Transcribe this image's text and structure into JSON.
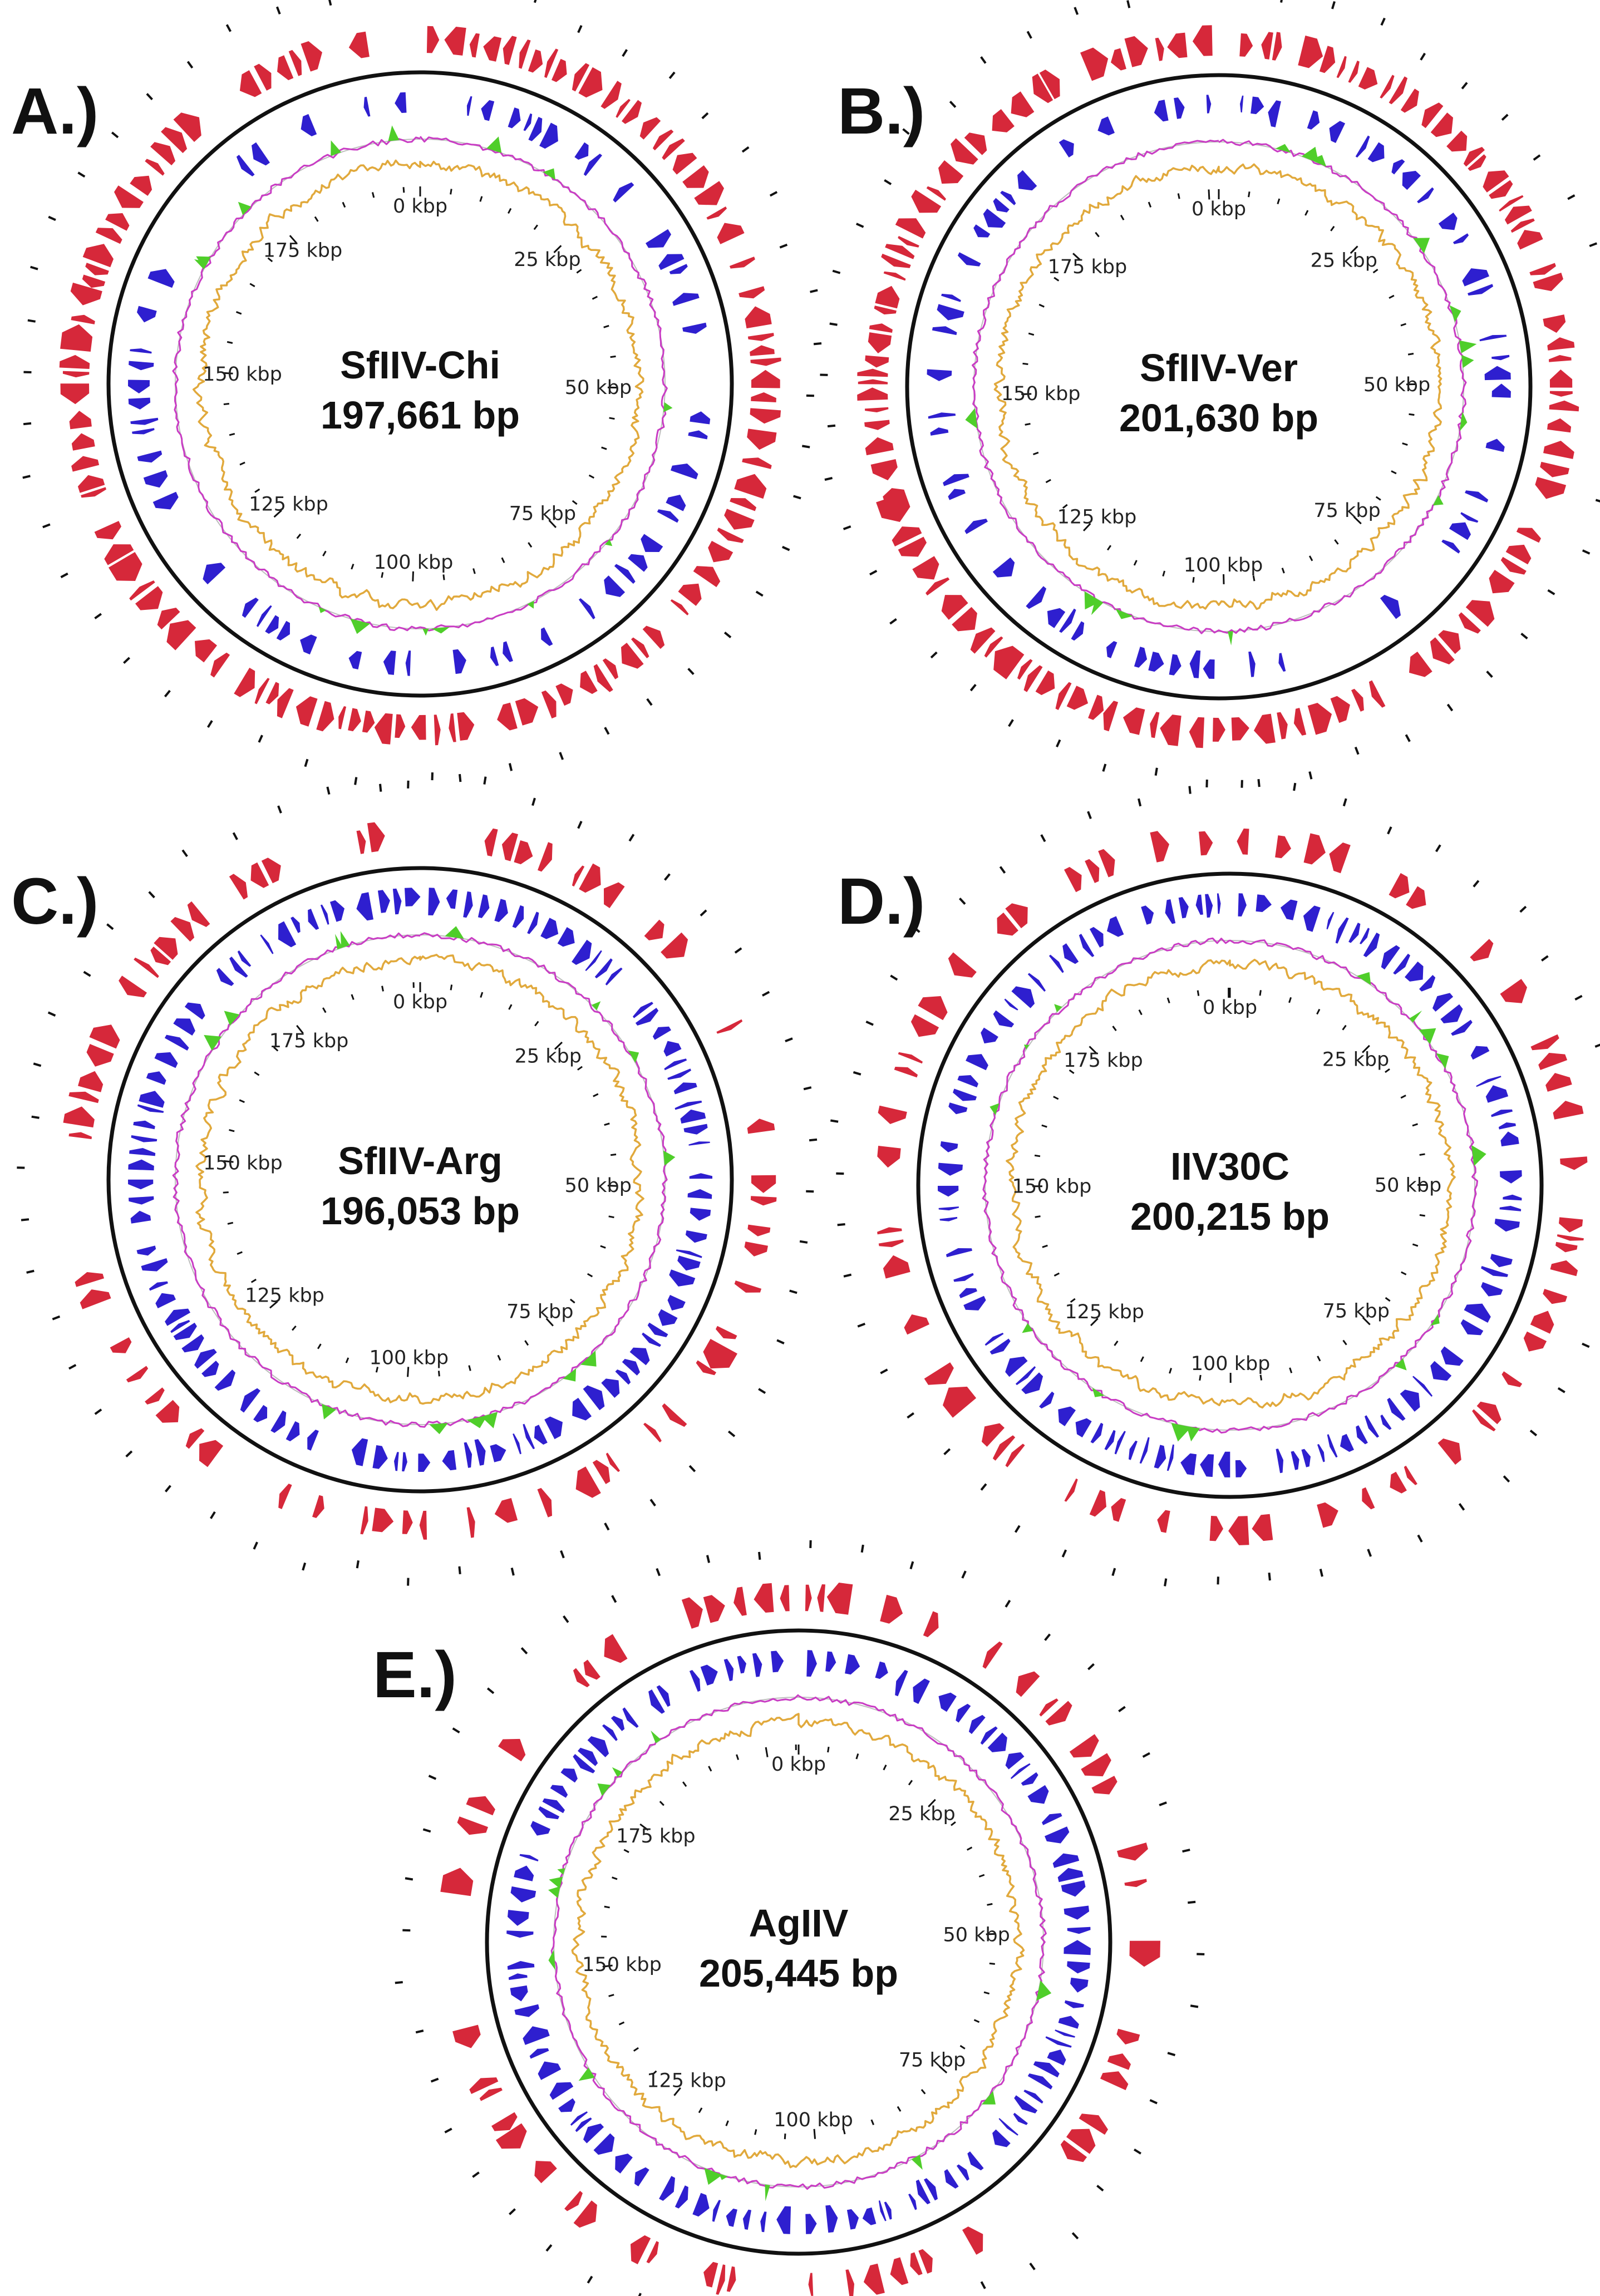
{
  "figure": {
    "colors": {
      "forward_cds": "#d6283a",
      "reverse_cds": "#2e1fcf",
      "gc_skew_positive": "#4fce2a",
      "gc_skew_negative": "#c93cc4",
      "gc_content": "#e1a93c",
      "backbone": "#111111"
    },
    "tick_labels": [
      "0 kbp",
      "25 kbp",
      "50 kbp",
      "75 kbp",
      "100 kbp",
      "125 kbp",
      "150 kbp",
      "175 kbp"
    ],
    "panels": [
      {
        "letter": "A.)",
        "name": "SfIIV-Chi",
        "size": "197,661 bp",
        "length_kbp": 197.661,
        "seed": 11,
        "forward_density": 0.9,
        "reverse_density": 0.55
      },
      {
        "letter": "B.)",
        "name": "SfIIV-Ver",
        "size": "201,630 bp",
        "length_kbp": 201.63,
        "seed": 23,
        "forward_density": 0.9,
        "reverse_density": 0.55
      },
      {
        "letter": "C.)",
        "name": "SfIIV-Arg",
        "size": "196,053 bp",
        "length_kbp": 196.053,
        "seed": 37,
        "forward_density": 0.45,
        "reverse_density": 0.92
      },
      {
        "letter": "D.)",
        "name": "IIV30C",
        "size": "200,215 bp",
        "length_kbp": 200.215,
        "seed": 41,
        "forward_density": 0.5,
        "reverse_density": 0.92
      },
      {
        "letter": "E.)",
        "name": "AgIIV",
        "size": "205,445 bp",
        "length_kbp": 205.445,
        "seed": 53,
        "forward_density": 0.5,
        "reverse_density": 0.92
      }
    ]
  }
}
